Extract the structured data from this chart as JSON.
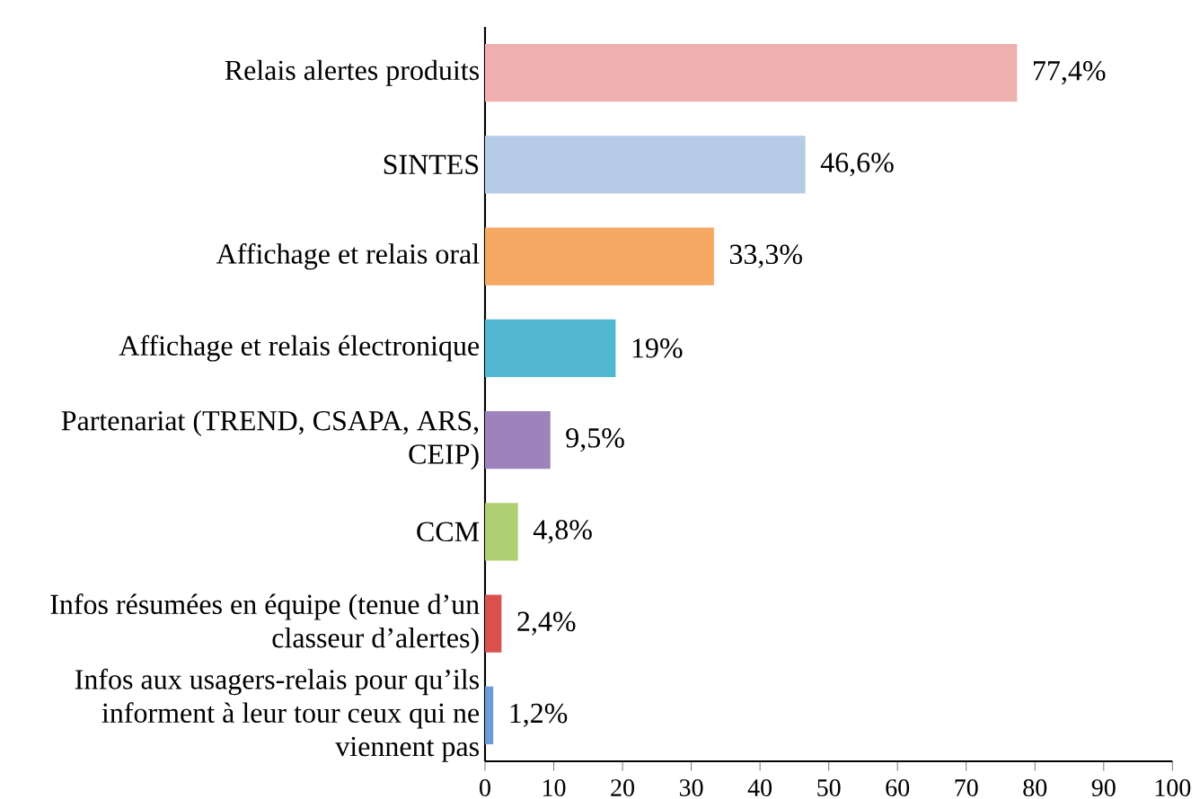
{
  "chart_data": {
    "type": "bar",
    "orientation": "horizontal",
    "categories": [
      "Relais alertes produits",
      "SINTES",
      "Affichage et relais oral",
      "Affichage et relais électronique",
      "Partenariat (TREND, CSAPA, ARS, CEIP)",
      "CCM",
      "Infos résumées en équipe (tenue d’un classeur d’alertes)",
      "Infos aux usagers-relais pour qu’ils informent à leur tour ceux qui ne viennent pas"
    ],
    "values": [
      77.4,
      46.6,
      33.3,
      19,
      9.5,
      4.8,
      2.4,
      1.2
    ],
    "value_labels": [
      "77,4%",
      "46,6%",
      "33,3%",
      "19%",
      "9,5%",
      "4,8%",
      "2,4%",
      "1,2%"
    ],
    "colors": [
      "#efafaf",
      "#b6cbe6",
      "#f4a862",
      "#52b8d2",
      "#9e82bb",
      "#afcf72",
      "#d9514c",
      "#6b9bd8"
    ],
    "xlim": [
      0,
      100
    ],
    "xticks": [
      0,
      10,
      20,
      30,
      40,
      50,
      60,
      70,
      80,
      90,
      100
    ]
  }
}
